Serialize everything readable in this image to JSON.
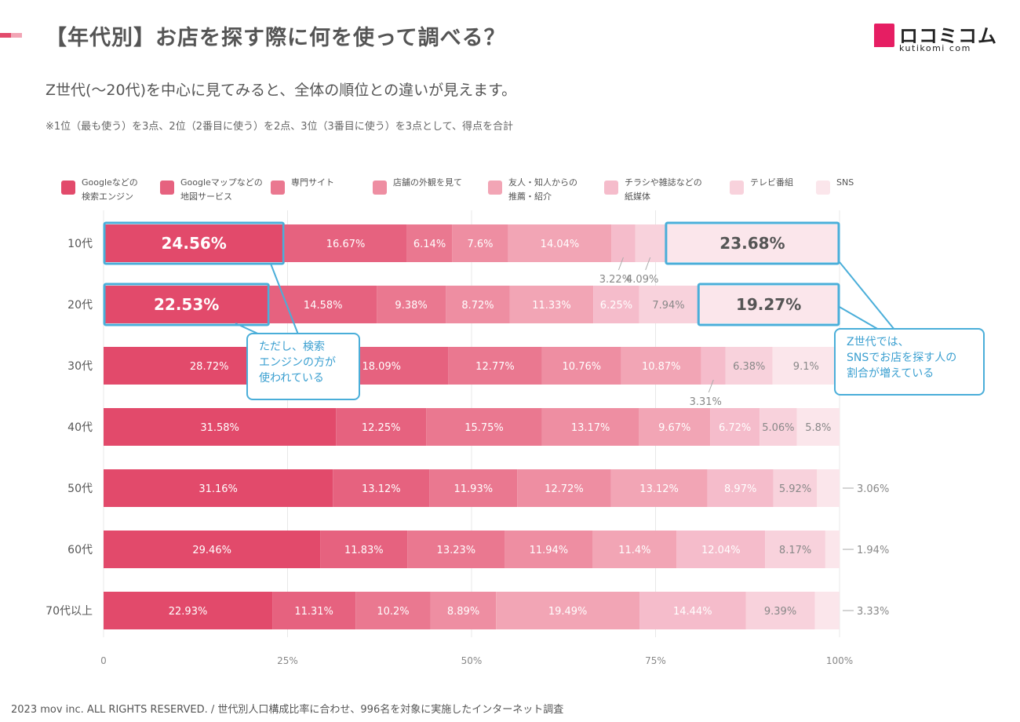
{
  "header": {
    "title": "【年代別】お店を探す際に何を使って調べる？",
    "subtitle": "Z世代(〜20代)を中心に見てみると、全体の順位との違いが見えます。",
    "note": "※1位（最も使う）を3点、2位（2番目に使う）を2点、3位（3番目に使う）を3点として、得点を合計",
    "logo_text": "ロコミコム",
    "logo_sub": "kutikomi com"
  },
  "footer": "2023 mov inc. ALL RIGHTS RESERVED. / 世代別人口構成比率に合わせ、996名を対象に実施したインターネット調査",
  "callouts": {
    "left": "ただし、検索\nエンジンの方が\n使われている",
    "right": "Z世代では、\nSNSでお店を探す人の\n割合が増えている"
  },
  "colors": {
    "accent_blue": "#4aaed9",
    "brand": "#e61e63",
    "series": [
      "#e24a6b",
      "#e6627f",
      "#ea7890",
      "#ee8ea2",
      "#f2a5b5",
      "#f5bccb",
      "#f8d2dc",
      "#fbe6eb"
    ]
  },
  "chart_data": {
    "type": "bar",
    "orientation": "horizontal",
    "stacked": true,
    "unit": "%",
    "xlim": [
      0,
      100
    ],
    "x_ticks": [
      "0",
      "25%",
      "50%",
      "75%",
      "100%"
    ],
    "grid": true,
    "legend_position": "top",
    "categories": [
      "10代",
      "20代",
      "30代",
      "40代",
      "50代",
      "60代",
      "70代以上"
    ],
    "series": [
      {
        "name": "Googleなどの\n検索エンジン",
        "values": [
          24.56,
          22.53,
          28.72,
          31.58,
          31.16,
          29.46,
          22.93
        ]
      },
      {
        "name": "Googleマップなどの\n地図サービス",
        "values": [
          16.67,
          14.58,
          18.09,
          12.25,
          13.12,
          11.83,
          11.31
        ]
      },
      {
        "name": "専門サイト",
        "values": [
          6.14,
          9.38,
          12.77,
          15.75,
          11.93,
          13.23,
          10.2
        ]
      },
      {
        "name": "店舗の外観を見て",
        "values": [
          7.6,
          8.72,
          10.76,
          13.17,
          12.72,
          11.94,
          8.89
        ]
      },
      {
        "name": "友人・知人からの\n推薦・紹介",
        "values": [
          14.04,
          11.33,
          10.87,
          9.67,
          13.12,
          11.4,
          19.49
        ]
      },
      {
        "name": "チラシや雑誌などの\n紙媒体",
        "values": [
          3.22,
          6.25,
          3.31,
          6.72,
          8.97,
          12.04,
          14.44
        ]
      },
      {
        "name": "テレビ番組",
        "values": [
          4.09,
          7.94,
          6.38,
          5.06,
          5.92,
          8.17,
          9.39
        ]
      },
      {
        "name": "SNS",
        "values": [
          23.68,
          19.27,
          9.1,
          5.8,
          3.06,
          1.94,
          3.33
        ]
      }
    ],
    "highlighted": [
      [
        0,
        0
      ],
      [
        0,
        7
      ],
      [
        1,
        0
      ],
      [
        1,
        7
      ]
    ],
    "labels_below": [
      [
        0,
        5
      ],
      [
        0,
        6
      ],
      [
        2,
        5
      ]
    ],
    "labels_right": [
      [
        4,
        7
      ],
      [
        5,
        7
      ],
      [
        6,
        7
      ]
    ]
  }
}
